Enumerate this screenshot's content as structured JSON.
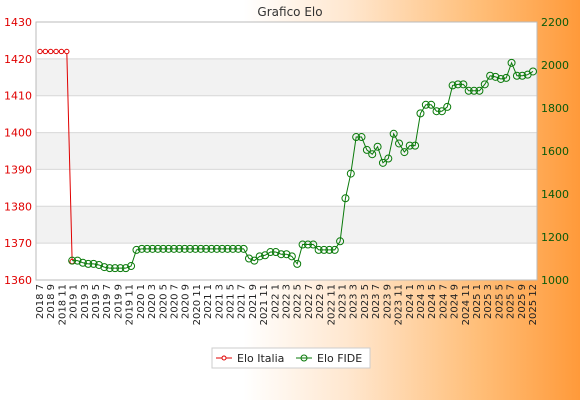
{
  "chart_data": {
    "type": "line",
    "title": "Grafico Elo",
    "colors": {
      "italia": "#e00000",
      "fide": "#0a7a0a",
      "band": "#f2f2f2",
      "grid": "#d8d8d8"
    },
    "y_left": {
      "min": 1360,
      "max": 1430,
      "ticks": [
        1360,
        1370,
        1380,
        1390,
        1400,
        1410,
        1420,
        1430
      ]
    },
    "y_right": {
      "min": 1000,
      "max": 2200,
      "ticks": [
        1000,
        1200,
        1400,
        1600,
        1800,
        2000,
        2200
      ]
    },
    "x_tick_labels": [
      "2018 7",
      "2018 9",
      "2018 11",
      "2019 1",
      "2019 3",
      "2019 5",
      "2019 7",
      "2019 9",
      "2019 11",
      "2020 1",
      "2020 3",
      "2020 5",
      "2020 7",
      "2020 9",
      "2020 11",
      "2021 1",
      "2021 3",
      "2021 5",
      "2021 7",
      "2021 9",
      "2021 11",
      "2022 1",
      "2022 3",
      "2022 5",
      "2022 7",
      "2022 9",
      "2022 11",
      "2023 1",
      "2023 3",
      "2023 5",
      "2023 7",
      "2023 9",
      "2023 11",
      "2024 1",
      "2024 3",
      "2024 5",
      "2024 7",
      "2024 9",
      "2024 11",
      "2025 1",
      "2025 3",
      "2025 5",
      "2025 7",
      "2025 9",
      "2025 12"
    ],
    "series": [
      {
        "name": "Elo Italia",
        "axis": "left",
        "values": [
          1422,
          1422,
          1422,
          1422,
          1422,
          1422,
          1365
        ]
      },
      {
        "name": "Elo FIDE",
        "axis": "right",
        "values": [
          null,
          null,
          null,
          null,
          null,
          null,
          1090,
          1090,
          1080,
          1075,
          1075,
          1070,
          1060,
          1055,
          1055,
          1055,
          1055,
          1065,
          1140,
          1145,
          1145,
          1145,
          1145,
          1145,
          1145,
          1145,
          1145,
          1145,
          1145,
          1145,
          1145,
          1145,
          1145,
          1145,
          1145,
          1145,
          1145,
          1145,
          1145,
          1100,
          1090,
          1110,
          1115,
          1130,
          1130,
          1120,
          1120,
          1110,
          1075,
          1165,
          1165,
          1165,
          1140,
          1140,
          1140,
          1140,
          1180,
          1380,
          1495,
          1665,
          1665,
          1605,
          1585,
          1620,
          1545,
          1565,
          1680,
          1635,
          1595,
          1625,
          1625,
          1775,
          1815,
          1815,
          1785,
          1785,
          1805,
          1905,
          1910,
          1910,
          1880,
          1880,
          1880,
          1910,
          1950,
          1945,
          1935,
          1940,
          2010,
          1950,
          1950,
          1955,
          1970
        ]
      }
    ],
    "legend": {
      "position": "bottom-center",
      "entries": [
        "Elo Italia",
        "Elo FIDE"
      ]
    },
    "grid": true
  }
}
